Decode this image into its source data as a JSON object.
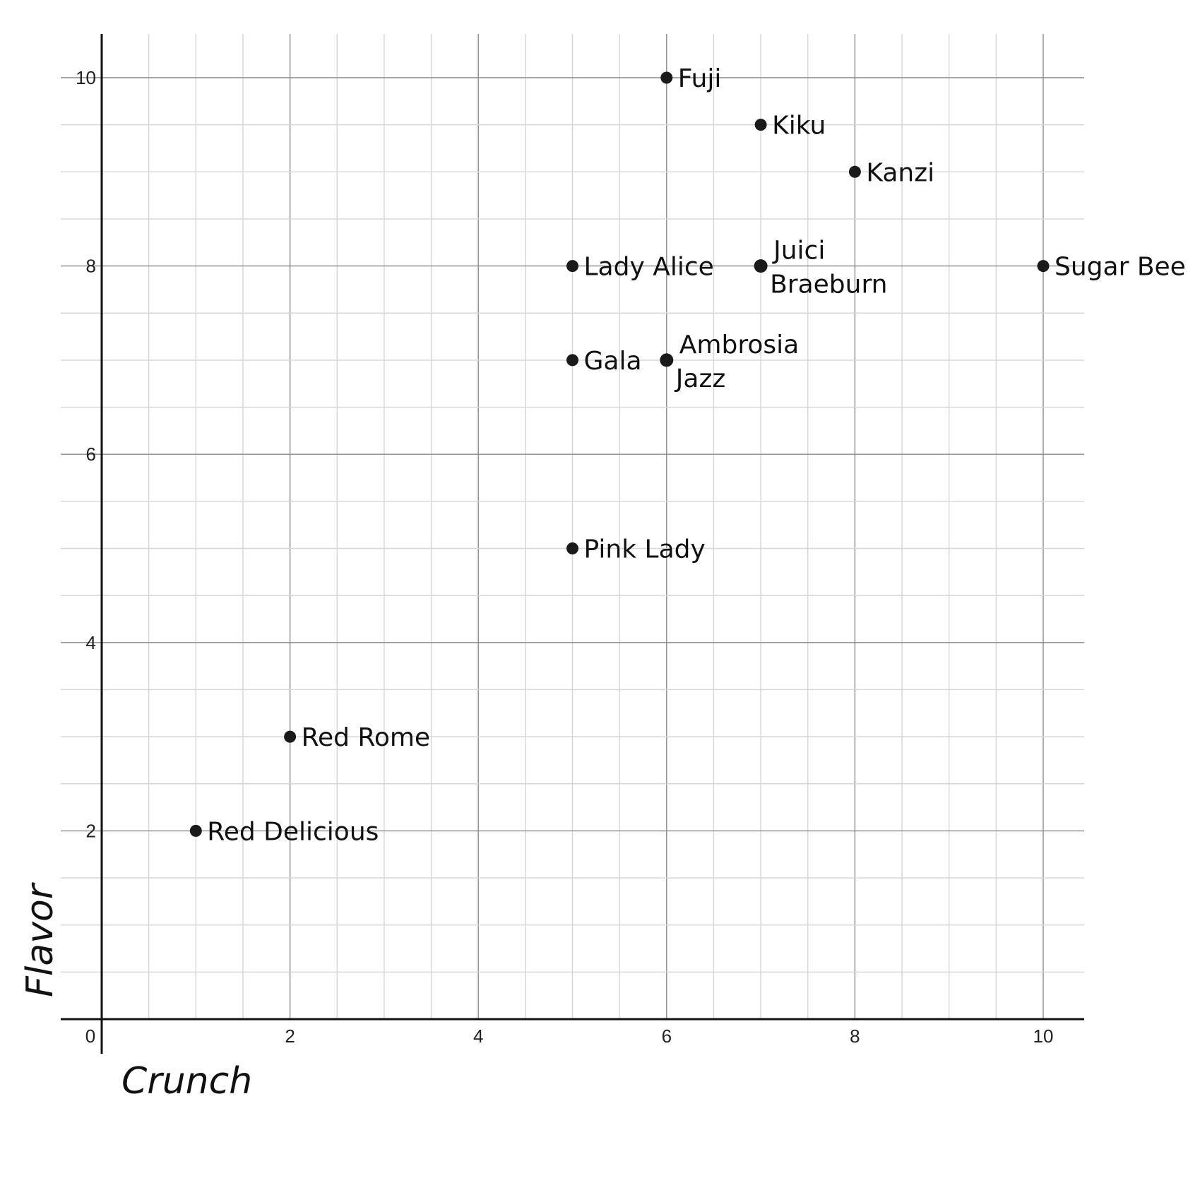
{
  "chart_data": {
    "type": "scatter",
    "title": "",
    "xlabel": "Crunch",
    "ylabel": "Flavor",
    "xlim": [
      0,
      10
    ],
    "ylim": [
      0,
      10
    ],
    "x_ticks": [
      "0",
      "2",
      "4",
      "6",
      "8",
      "10"
    ],
    "y_ticks": [
      "2",
      "4",
      "6",
      "8",
      "10"
    ],
    "grid": true,
    "points": [
      {
        "label": "Fuji",
        "x": 6,
        "y": 10
      },
      {
        "label": "Kiku",
        "x": 7,
        "y": 9.5
      },
      {
        "label": "Kanzi",
        "x": 8,
        "y": 9
      },
      {
        "label": "Lady Alice",
        "x": 5,
        "y": 8
      },
      {
        "label": "Juici",
        "x": 7,
        "y": 8
      },
      {
        "label": "Braeburn",
        "x": 7,
        "y": 8
      },
      {
        "label": "Sugar Bee",
        "x": 10,
        "y": 8
      },
      {
        "label": "Gala",
        "x": 5,
        "y": 7
      },
      {
        "label": "Ambrosia",
        "x": 6,
        "y": 7
      },
      {
        "label": "Jazz",
        "x": 6,
        "y": 7
      },
      {
        "label": "Pink Lady",
        "x": 5,
        "y": 5
      },
      {
        "label": "Red Rome",
        "x": 2,
        "y": 3
      },
      {
        "label": "Red Delicious",
        "x": 1,
        "y": 2
      }
    ]
  }
}
